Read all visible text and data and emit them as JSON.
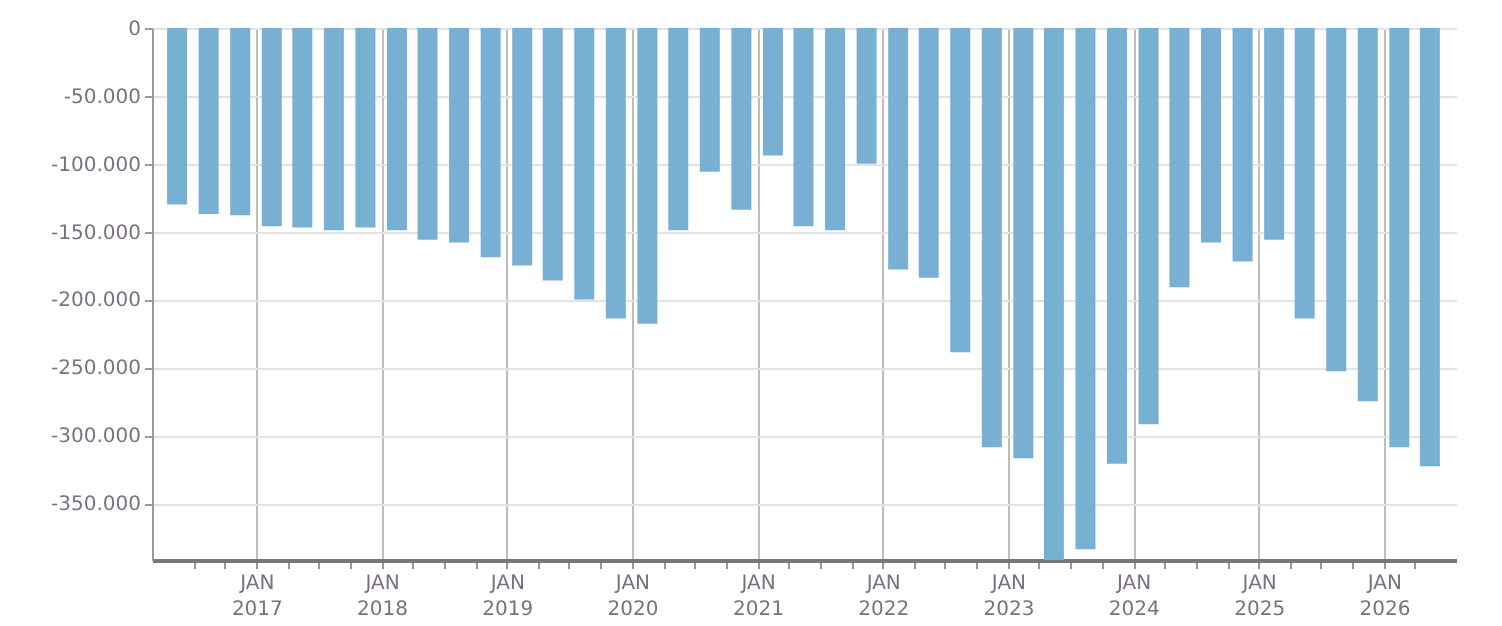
{
  "chart_data": {
    "type": "bar",
    "color": "#78b0d4",
    "grid": true,
    "x": [
      "2016-05-15",
      "2016-08-15",
      "2016-11-15",
      "2017-02-15",
      "2017-05-15",
      "2017-08-15",
      "2017-11-15",
      "2018-02-15",
      "2018-05-15",
      "2018-08-15",
      "2018-11-15",
      "2019-02-15",
      "2019-05-15",
      "2019-08-15",
      "2019-11-15",
      "2020-02-15",
      "2020-05-15",
      "2020-08-15",
      "2020-11-15",
      "2021-02-15",
      "2021-05-15",
      "2021-08-15",
      "2021-11-15",
      "2022-02-15",
      "2022-05-15",
      "2022-08-15",
      "2022-11-15",
      "2023-02-15",
      "2023-05-15",
      "2023-08-15",
      "2023-11-15",
      "2024-02-15",
      "2024-05-15",
      "2024-08-15",
      "2024-11-15",
      "2025-02-15",
      "2025-05-15",
      "2025-08-15",
      "2025-11-15",
      "2026-02-15",
      "2026-05-15"
    ],
    "values": [
      -130000,
      -137000,
      -138000,
      -146000,
      -147000,
      -149000,
      -147000,
      -149000,
      -156000,
      -158000,
      -169000,
      -175000,
      -186000,
      -200000,
      -214000,
      -218000,
      -149000,
      -106000,
      -134000,
      -94000,
      -146000,
      -149000,
      -100000,
      -178000,
      -184000,
      -239000,
      -309000,
      -317000,
      -392000,
      -384000,
      -321000,
      -292000,
      -191000,
      -158000,
      -172000,
      -156000,
      -214000,
      -253000,
      -275000,
      -309000,
      -323000
    ],
    "xlim": [
      "2016-04-01",
      "2026-07-01"
    ],
    "xticks": [
      {
        "value": "2016-07-01",
        "label": null
      },
      {
        "value": "2016-10-01",
        "label": null
      },
      {
        "value": "2017-01-01",
        "label": "JAN\n2017"
      },
      {
        "value": "2017-04-01",
        "label": null
      },
      {
        "value": "2017-07-01",
        "label": null
      },
      {
        "value": "2017-10-01",
        "label": null
      },
      {
        "value": "2018-01-01",
        "label": "JAN\n2018"
      },
      {
        "value": "2018-04-01",
        "label": null
      },
      {
        "value": "2018-07-01",
        "label": null
      },
      {
        "value": "2018-10-01",
        "label": null
      },
      {
        "value": "2019-01-01",
        "label": "JAN\n2019"
      },
      {
        "value": "2019-04-01",
        "label": null
      },
      {
        "value": "2019-07-01",
        "label": null
      },
      {
        "value": "2019-10-01",
        "label": null
      },
      {
        "value": "2020-01-01",
        "label": "JAN\n2020"
      },
      {
        "value": "2020-04-01",
        "label": null
      },
      {
        "value": "2020-07-01",
        "label": null
      },
      {
        "value": "2020-10-01",
        "label": null
      },
      {
        "value": "2021-01-01",
        "label": "JAN\n2021"
      },
      {
        "value": "2021-04-01",
        "label": null
      },
      {
        "value": "2021-07-01",
        "label": null
      },
      {
        "value": "2021-10-01",
        "label": null
      },
      {
        "value": "2022-01-01",
        "label": "JAN\n2022"
      },
      {
        "value": "2022-04-01",
        "label": null
      },
      {
        "value": "2022-07-01",
        "label": null
      },
      {
        "value": "2022-10-01",
        "label": null
      },
      {
        "value": "2023-01-01",
        "label": "JAN\n2023"
      },
      {
        "value": "2023-04-01",
        "label": null
      },
      {
        "value": "2023-07-01",
        "label": null
      },
      {
        "value": "2023-10-01",
        "label": null
      },
      {
        "value": "2024-01-01",
        "label": "JAN\n2024"
      },
      {
        "value": "2024-04-01",
        "label": null
      },
      {
        "value": "2024-07-01",
        "label": null
      },
      {
        "value": "2024-10-01",
        "label": null
      },
      {
        "value": "2025-01-01",
        "label": "JAN\n2025"
      },
      {
        "value": "2025-04-01",
        "label": null
      },
      {
        "value": "2025-07-01",
        "label": null
      },
      {
        "value": "2025-10-01",
        "label": null
      },
      {
        "value": "2026-01-01",
        "label": "JAN\n2026"
      },
      {
        "value": "2026-04-01",
        "label": null
      }
    ],
    "ylim": [
      -392000,
      0
    ],
    "yticks": [
      0,
      {
        "value": -50000,
        "label": "-50.000"
      },
      {
        "value": -100000,
        "label": "-100.000"
      },
      {
        "value": -150000,
        "label": "-150.000"
      },
      {
        "value": -200000,
        "label": "-200.000"
      },
      {
        "value": -250000,
        "label": "-250.000"
      },
      {
        "value": -300000,
        "label": "-300.000"
      },
      {
        "value": -350000,
        "label": "-350.000"
      }
    ]
  }
}
